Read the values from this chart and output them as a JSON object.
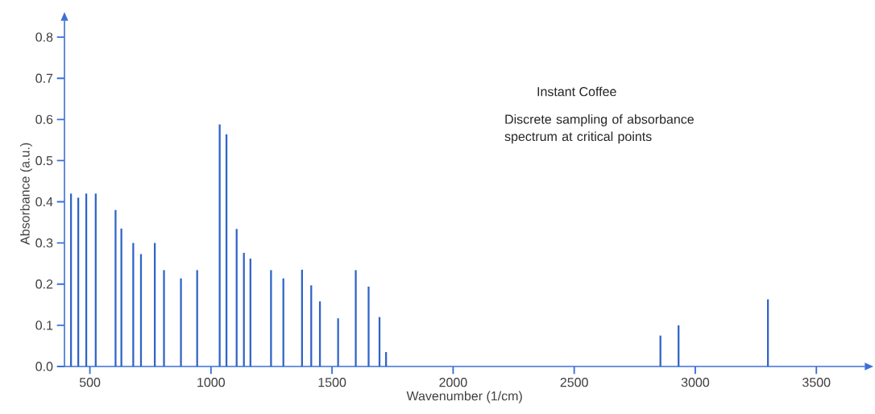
{
  "chart_data": {
    "type": "bar",
    "title": "Instant Coffee",
    "subtitle": "Discrete sampling of absorbance spectrum at critical points",
    "xlabel": "Wavenumber  (1/cm)",
    "ylabel": "Absorbance  (a.u.)",
    "x": [
      422,
      452,
      485,
      524,
      606,
      630,
      679,
      711,
      768,
      806,
      876,
      943,
      1036,
      1064,
      1106,
      1136,
      1163,
      1248,
      1299,
      1376,
      1414,
      1450,
      1525,
      1598,
      1651,
      1696,
      1723,
      2856,
      2931,
      3300
    ],
    "values": [
      0.42,
      0.41,
      0.42,
      0.42,
      0.38,
      0.335,
      0.3,
      0.273,
      0.3,
      0.234,
      0.214,
      0.234,
      0.588,
      0.564,
      0.334,
      0.276,
      0.262,
      0.234,
      0.214,
      0.235,
      0.197,
      0.158,
      0.117,
      0.234,
      0.194,
      0.12,
      0.035,
      0.075,
      0.1,
      0.163
    ],
    "color": "#2f64c8",
    "xlim": [
      395,
      3700
    ],
    "ylim": [
      0,
      0.84
    ],
    "xticks": [
      500,
      1000,
      1500,
      2000,
      2500,
      3000,
      3500
    ],
    "yticks": [
      {
        "value": 0,
        "label": "0.0"
      },
      0.1,
      0.2,
      0.3,
      0.4,
      0.5,
      0.6,
      0.7,
      0.8
    ]
  }
}
